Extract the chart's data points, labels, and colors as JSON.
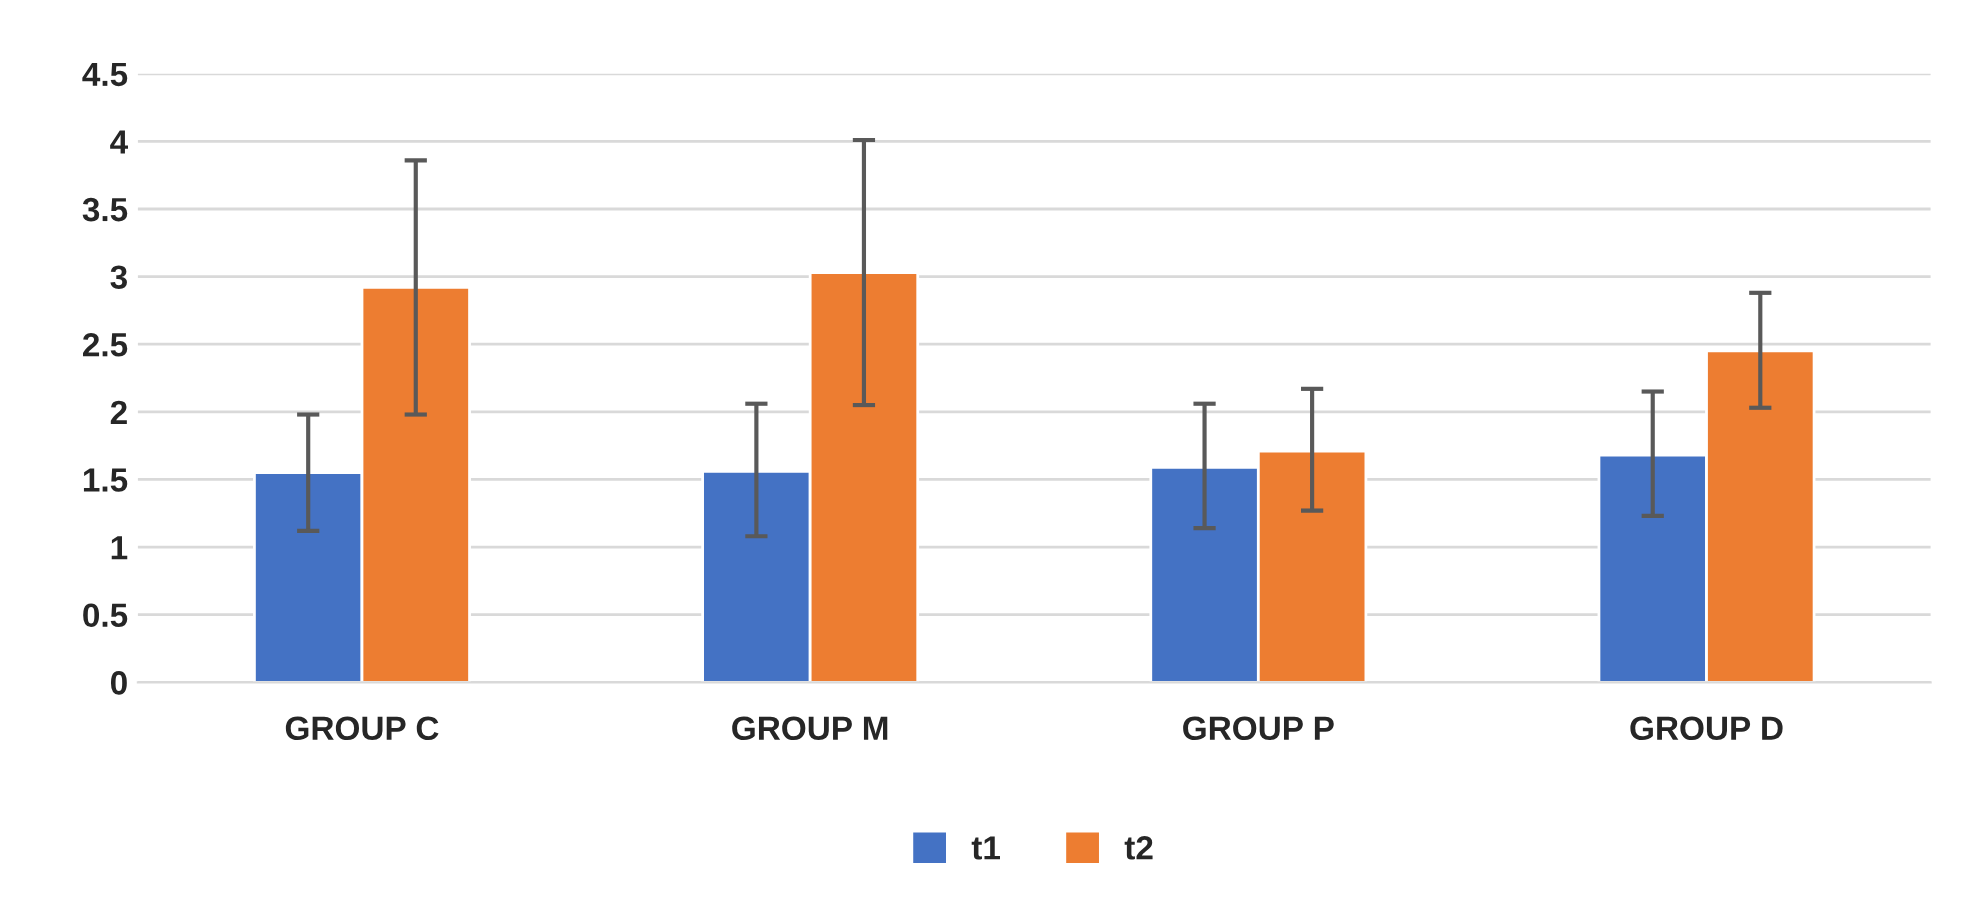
{
  "chart_data": {
    "type": "bar",
    "categories": [
      "GROUP C",
      "GROUP M",
      "GROUP P",
      "GROUP D"
    ],
    "series": [
      {
        "name": "t1",
        "color": "#4472c4",
        "values": [
          1.55,
          1.56,
          1.59,
          1.68
        ],
        "errors": [
          [
            1.12,
            1.98
          ],
          [
            1.08,
            2.06
          ],
          [
            1.14,
            2.06
          ],
          [
            1.23,
            2.15
          ]
        ]
      },
      {
        "name": "t2",
        "color": "#ed7d31",
        "values": [
          2.92,
          3.03,
          1.71,
          2.45
        ],
        "errors": [
          [
            1.98,
            3.86
          ],
          [
            2.05,
            4.01
          ],
          [
            1.27,
            2.17
          ],
          [
            2.03,
            2.88
          ]
        ]
      }
    ],
    "ylim": [
      0,
      4.5
    ],
    "yticks": [
      0,
      0.5,
      1,
      1.5,
      2,
      2.5,
      3,
      3.5,
      4,
      4.5
    ],
    "grid": "y",
    "legend": "bottom"
  }
}
